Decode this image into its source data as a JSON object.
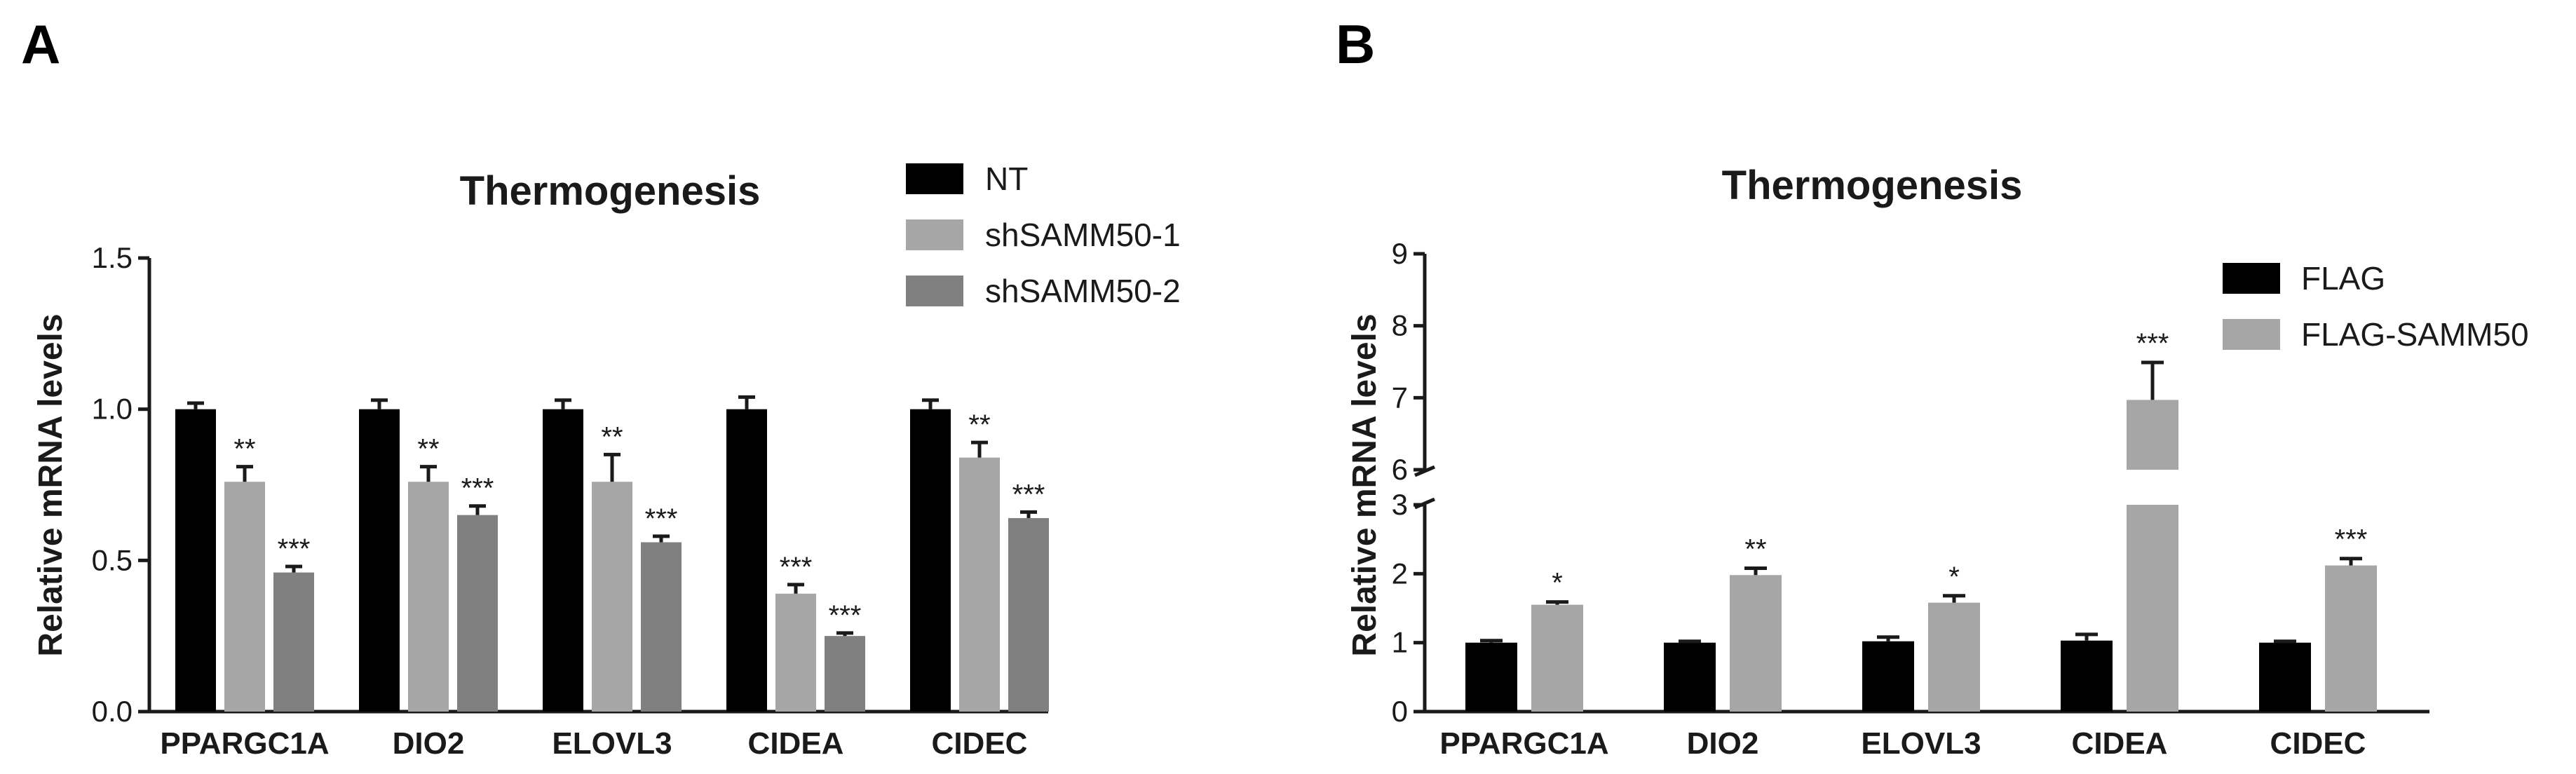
{
  "chart_data": [
    {
      "panel": "A",
      "type": "bar",
      "title": "Thermogenesis",
      "xlabel": "",
      "ylabel": "Relative mRNA levels",
      "ylim": [
        0,
        1.5
      ],
      "yticks": [
        "0.0",
        "0.5",
        "1.0",
        "1.5"
      ],
      "ytick_values": [
        0,
        0.5,
        1.0,
        1.5
      ],
      "categories": [
        "PPARGC1A",
        "DIO2",
        "ELOVL3",
        "CIDEA",
        "CIDEC"
      ],
      "legend_placement": "top-right",
      "series": [
        {
          "name": "NT",
          "color": "#000000",
          "values": [
            1.0,
            1.0,
            1.0,
            1.0,
            1.0
          ],
          "errors": [
            0.02,
            0.03,
            0.03,
            0.04,
            0.03
          ],
          "sig": [
            "",
            "",
            "",
            "",
            ""
          ]
        },
        {
          "name": "shSAMM50-1",
          "color": "#a6a6a6",
          "values": [
            0.76,
            0.76,
            0.76,
            0.39,
            0.84
          ],
          "errors": [
            0.05,
            0.05,
            0.09,
            0.03,
            0.05
          ],
          "sig": [
            "**",
            "**",
            "**",
            "***",
            "**"
          ]
        },
        {
          "name": "shSAMM50-2",
          "color": "#808080",
          "values": [
            0.46,
            0.65,
            0.56,
            0.25,
            0.64
          ],
          "errors": [
            0.02,
            0.03,
            0.02,
            0.01,
            0.02
          ],
          "sig": [
            "***",
            "***",
            "***",
            "***",
            "***"
          ]
        }
      ]
    },
    {
      "panel": "B",
      "type": "bar",
      "title": "Thermogenesis",
      "xlabel": "",
      "ylabel": "Relative mRNA levels",
      "axis_break": true,
      "ylim_lower": [
        0,
        3
      ],
      "ylim_upper": [
        6,
        9
      ],
      "yticks_lower": [
        "0",
        "1",
        "2",
        "3"
      ],
      "yticks_upper": [
        "6",
        "7",
        "8",
        "9"
      ],
      "categories": [
        "PPARGC1A",
        "DIO2",
        "ELOVL3",
        "CIDEA",
        "CIDEC"
      ],
      "legend_placement": "top-right",
      "series": [
        {
          "name": "FLAG",
          "color": "#000000",
          "values": [
            1.0,
            1.0,
            1.02,
            1.03,
            1.0
          ],
          "errors": [
            0.03,
            0.02,
            0.06,
            0.09,
            0.02
          ],
          "sig": [
            "",
            "",
            "",
            "",
            ""
          ]
        },
        {
          "name": "FLAG-SAMM50",
          "color": "#a6a6a6",
          "values": [
            1.55,
            1.98,
            1.58,
            6.97,
            2.12
          ],
          "errors": [
            0.04,
            0.1,
            0.1,
            0.52,
            0.1
          ],
          "sig": [
            "*",
            "**",
            "*",
            "***",
            "***"
          ]
        }
      ]
    }
  ]
}
